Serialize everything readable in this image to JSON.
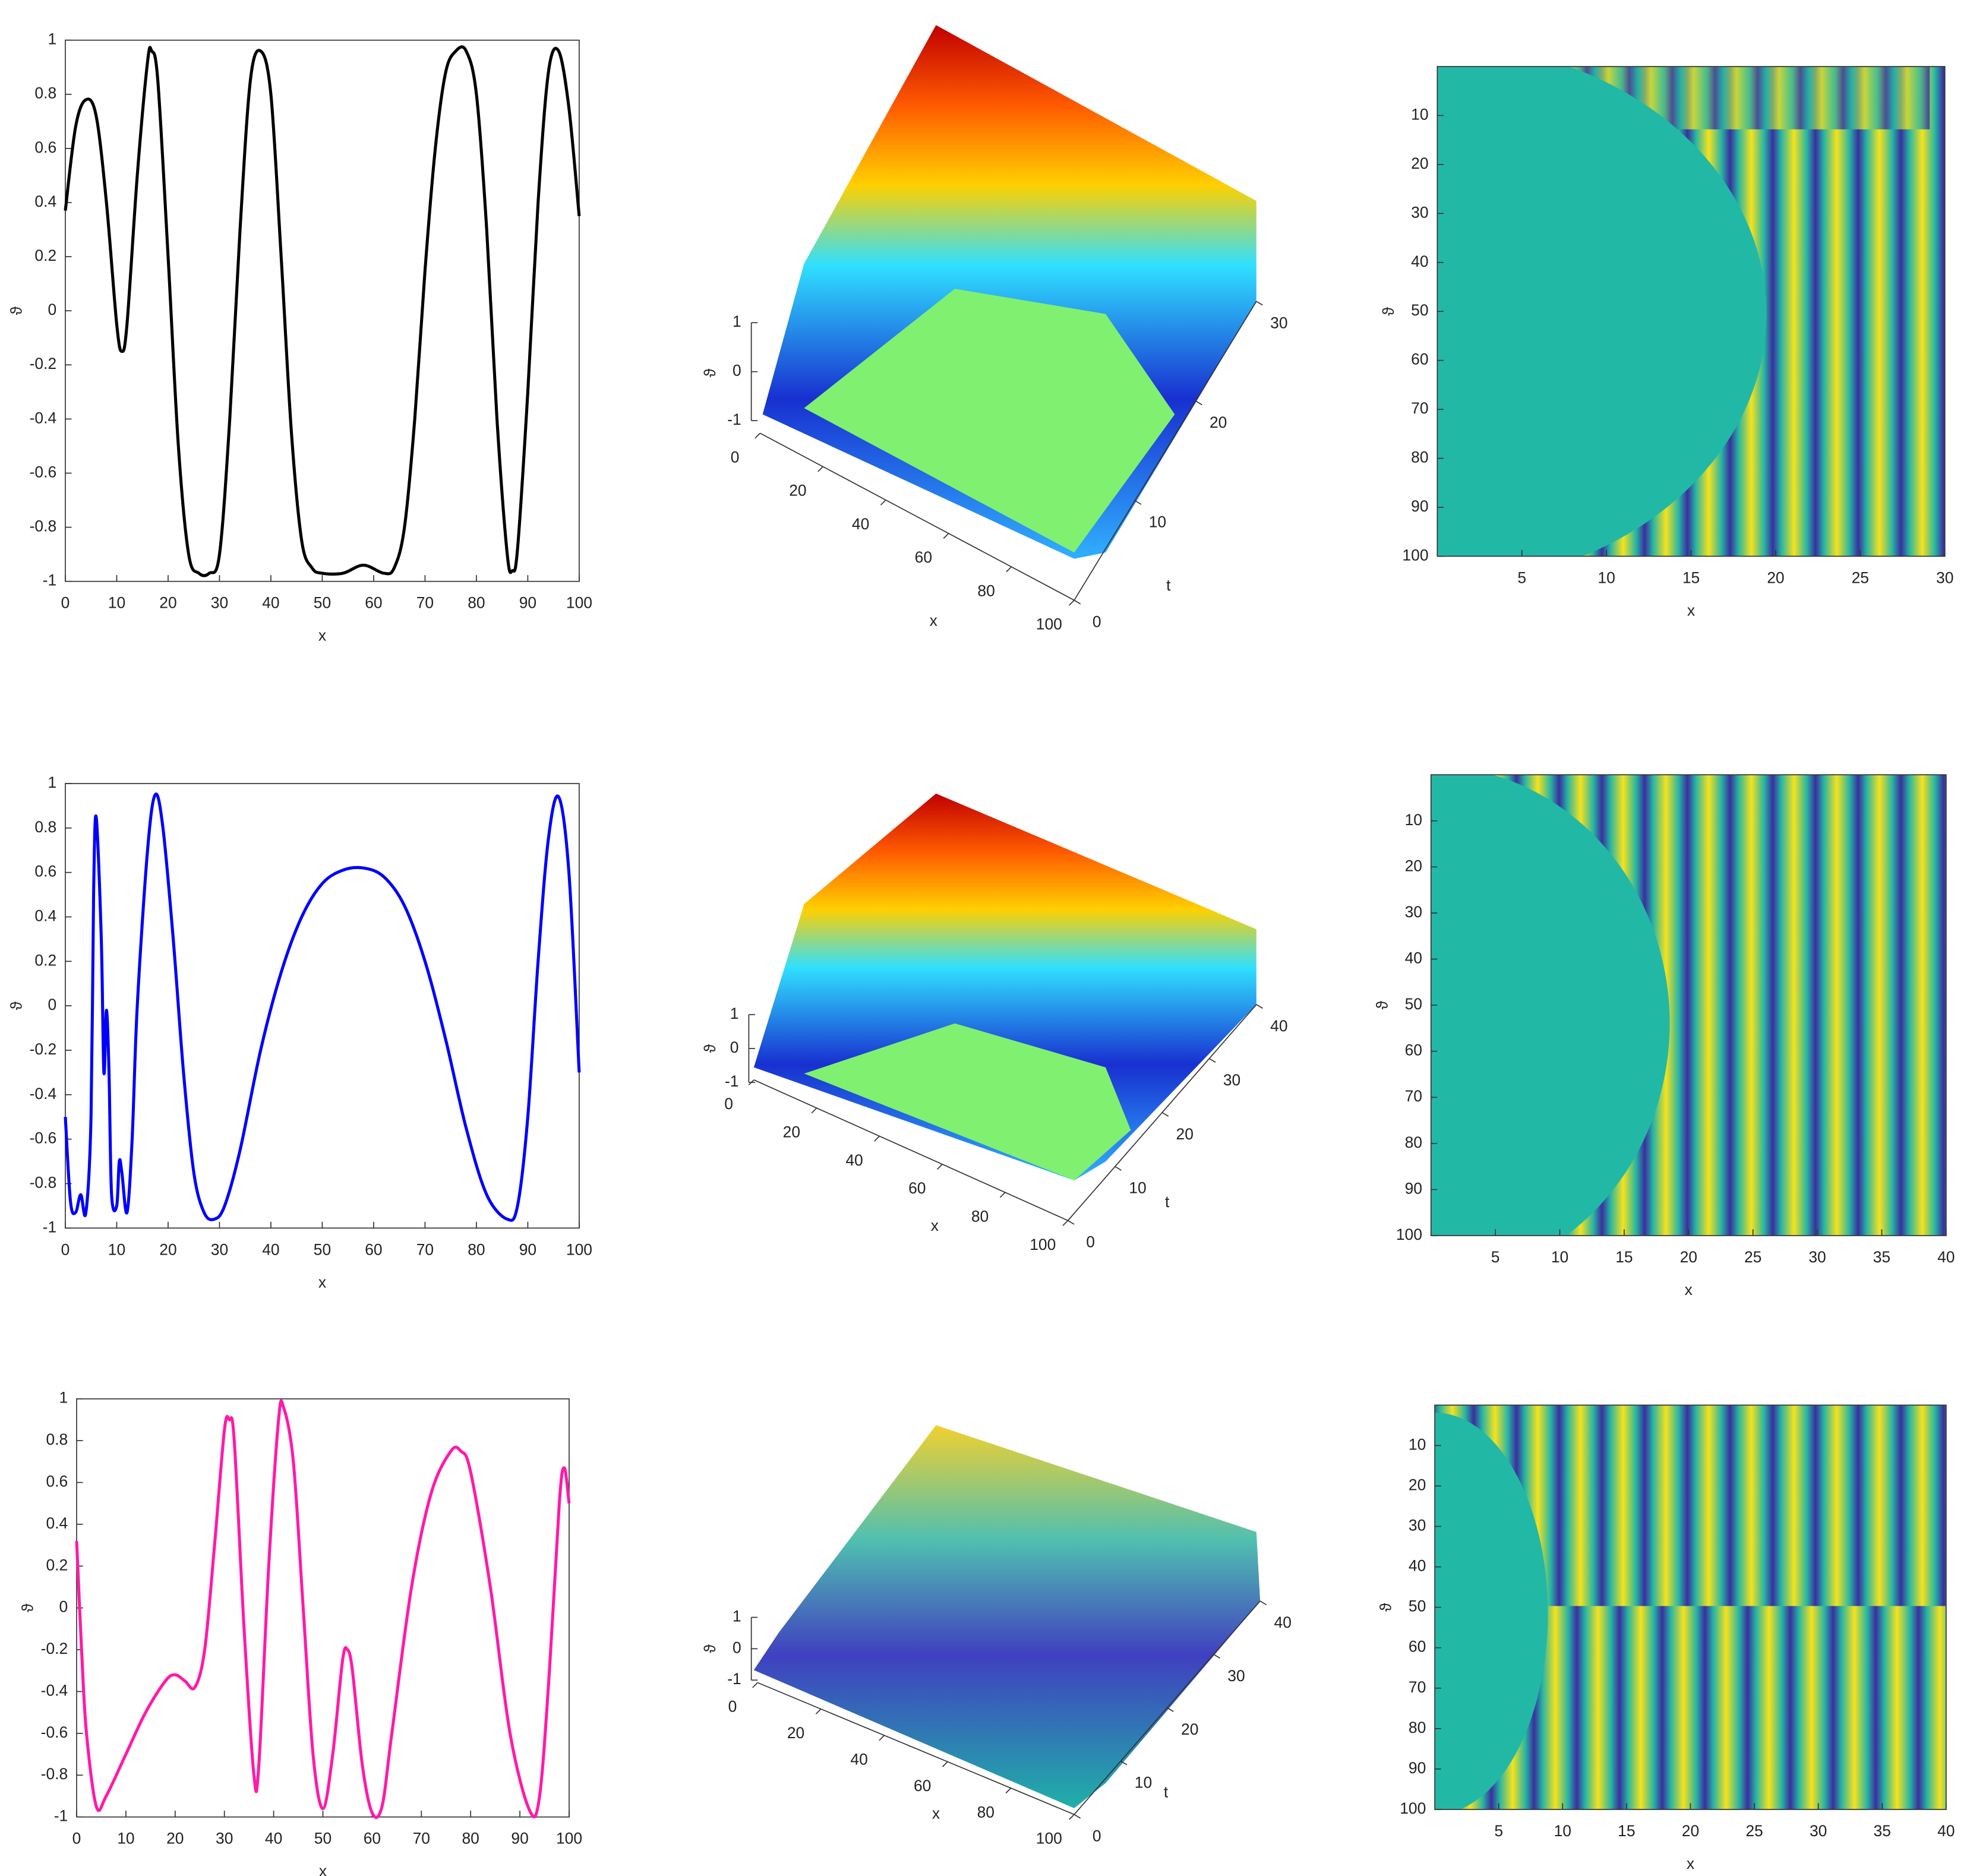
{
  "chart_data": [
    {
      "type": "line",
      "xlabel": "x",
      "ylabel": "ϑ",
      "color": "#000000",
      "xlim": [
        0,
        100
      ],
      "xticks": [
        0,
        10,
        20,
        30,
        40,
        50,
        60,
        70,
        80,
        90,
        100
      ],
      "ylim": [
        -1,
        1
      ],
      "yticks": [
        -1,
        -0.8,
        -0.6,
        -0.4,
        -0.2,
        0,
        0.2,
        0.4,
        0.6,
        0.8,
        1
      ],
      "x": [
        0,
        2,
        4,
        6,
        8,
        10,
        11,
        12,
        14,
        16,
        16.8,
        18,
        20,
        22,
        24,
        26,
        28,
        30,
        32,
        34,
        36,
        38,
        40,
        42,
        44,
        46,
        48,
        50,
        54,
        58,
        62,
        64,
        66,
        68,
        70,
        72,
        74,
        76,
        78,
        80,
        82,
        84,
        86,
        87,
        88,
        90,
        92,
        94,
        96,
        98,
        100
      ],
      "values": [
        0.37,
        0.68,
        0.78,
        0.72,
        0.4,
        -0.05,
        -0.15,
        -0.05,
        0.5,
        0.92,
        0.96,
        0.85,
        0.2,
        -0.5,
        -0.9,
        -0.97,
        -0.97,
        -0.9,
        -0.4,
        0.3,
        0.85,
        0.96,
        0.8,
        0.2,
        -0.45,
        -0.85,
        -0.95,
        -0.97,
        -0.97,
        -0.94,
        -0.97,
        -0.95,
        -0.8,
        -0.4,
        0.15,
        0.6,
        0.88,
        0.96,
        0.96,
        0.8,
        0.3,
        -0.4,
        -0.9,
        -0.96,
        -0.88,
        -0.3,
        0.4,
        0.88,
        0.96,
        0.75,
        0.35
      ]
    },
    {
      "type": "surface",
      "xlabel": "x",
      "ylabel": "t",
      "zlabel": "ϑ",
      "xlim": [
        0,
        100
      ],
      "xticks": [
        0,
        20,
        40,
        60,
        80,
        100
      ],
      "ylim": [
        0,
        30
      ],
      "yticks": [
        0,
        10,
        20,
        30
      ],
      "zlim": [
        -1,
        1
      ],
      "zticks": [
        -1,
        0,
        1
      ]
    },
    {
      "type": "heatmap",
      "xlabel": "x",
      "ylabel": "ϑ",
      "xlim": [
        0,
        30
      ],
      "xticks": [
        5,
        10,
        15,
        20,
        25,
        30
      ],
      "ylim": [
        0,
        100
      ],
      "yticks": [
        10,
        20,
        30,
        40,
        50,
        60,
        70,
        80,
        90,
        100
      ]
    },
    {
      "type": "line",
      "xlabel": "x",
      "ylabel": "ϑ",
      "color": "#0000ff",
      "xlim": [
        0,
        100
      ],
      "xticks": [
        0,
        10,
        20,
        30,
        40,
        50,
        60,
        70,
        80,
        90,
        100
      ],
      "ylim": [
        -1,
        1
      ],
      "yticks": [
        -1,
        -0.8,
        -0.6,
        -0.4,
        -0.2,
        0,
        0.2,
        0.4,
        0.6,
        0.8,
        1
      ],
      "x": [
        0,
        1,
        2,
        3,
        4,
        5,
        5.5,
        6,
        7,
        7.5,
        8,
        8.5,
        9,
        10,
        10.5,
        11,
        12,
        13,
        14,
        16,
        17.5,
        19,
        21,
        23,
        25,
        27,
        29,
        31,
        34,
        38,
        42,
        46,
        50,
        54,
        58,
        62,
        66,
        70,
        74,
        78,
        82,
        86,
        88,
        90,
        92,
        94,
        96,
        98,
        100
      ],
      "values": [
        -0.5,
        -0.88,
        -0.93,
        -0.85,
        -0.93,
        -0.5,
        0.5,
        0.85,
        0.3,
        -0.3,
        -0.02,
        -0.3,
        -0.85,
        -0.9,
        -0.7,
        -0.75,
        -0.93,
        -0.6,
        0,
        0.7,
        0.95,
        0.8,
        0.3,
        -0.3,
        -0.75,
        -0.93,
        -0.96,
        -0.9,
        -0.65,
        -0.2,
        0.15,
        0.4,
        0.55,
        0.61,
        0.62,
        0.58,
        0.45,
        0.2,
        -0.15,
        -0.55,
        -0.85,
        -0.96,
        -0.9,
        -0.5,
        0.2,
        0.75,
        0.94,
        0.6,
        -0.3
      ]
    },
    {
      "type": "surface",
      "xlabel": "x",
      "ylabel": "t",
      "zlabel": "ϑ",
      "xlim": [
        0,
        100
      ],
      "xticks": [
        0,
        20,
        40,
        60,
        80,
        100
      ],
      "ylim": [
        0,
        40
      ],
      "yticks": [
        0,
        10,
        20,
        30,
        40
      ],
      "zlim": [
        -1,
        1
      ],
      "zticks": [
        -1,
        0,
        1
      ]
    },
    {
      "type": "heatmap",
      "xlabel": "x",
      "ylabel": "ϑ",
      "xlim": [
        0,
        40
      ],
      "xticks": [
        5,
        10,
        15,
        20,
        25,
        30,
        35,
        40
      ],
      "ylim": [
        0,
        100
      ],
      "yticks": [
        10,
        20,
        30,
        40,
        50,
        60,
        70,
        80,
        90,
        100
      ]
    },
    {
      "type": "line",
      "xlabel": "x",
      "ylabel": "ϑ",
      "color": "#ff1aa8",
      "xlim": [
        0,
        100
      ],
      "xticks": [
        0,
        10,
        20,
        30,
        40,
        50,
        60,
        70,
        80,
        90,
        100
      ],
      "ylim": [
        -1,
        1
      ],
      "yticks": [
        -1,
        -0.8,
        -0.6,
        -0.4,
        -0.2,
        0,
        0.2,
        0.4,
        0.6,
        0.8,
        1
      ],
      "x": [
        0,
        1,
        2,
        4,
        6,
        10,
        14,
        18,
        20,
        22,
        24,
        26,
        28,
        30,
        31,
        32,
        34,
        36,
        37,
        39,
        41,
        42,
        44,
        46,
        48,
        50,
        52,
        54,
        55,
        56,
        58,
        60,
        62,
        64,
        68,
        72,
        76,
        78,
        80,
        84,
        88,
        92,
        94,
        96,
        98,
        99,
        100
      ],
      "values": [
        0.32,
        -0.2,
        -0.6,
        -0.95,
        -0.9,
        -0.7,
        -0.5,
        -0.35,
        -0.32,
        -0.35,
        -0.38,
        -0.2,
        0.3,
        0.85,
        0.9,
        0.8,
        -0.1,
        -0.8,
        -0.75,
        0.2,
        0.9,
        0.96,
        0.7,
        0,
        -0.7,
        -0.96,
        -0.7,
        -0.25,
        -0.2,
        -0.3,
        -0.75,
        -0.98,
        -0.95,
        -0.6,
        0.1,
        0.55,
        0.75,
        0.75,
        0.65,
        0.1,
        -0.6,
        -0.97,
        -0.9,
        -0.3,
        0.5,
        0.67,
        0.5
      ]
    },
    {
      "type": "surface",
      "xlabel": "x",
      "ylabel": "t",
      "zlabel": "ϑ",
      "xlim": [
        0,
        100
      ],
      "xticks": [
        0,
        20,
        40,
        60,
        80,
        100
      ],
      "ylim": [
        0,
        40
      ],
      "yticks": [
        0,
        10,
        20,
        30,
        40
      ],
      "zlim": [
        -1,
        1
      ],
      "zticks": [
        -1,
        0,
        1
      ]
    },
    {
      "type": "heatmap",
      "xlabel": "x",
      "ylabel": "ϑ",
      "xlim": [
        0,
        40
      ],
      "xticks": [
        5,
        10,
        15,
        20,
        25,
        30,
        35,
        40
      ],
      "ylim": [
        0,
        100
      ],
      "yticks": [
        10,
        20,
        30,
        40,
        50,
        60,
        70,
        80,
        90,
        100
      ]
    }
  ]
}
